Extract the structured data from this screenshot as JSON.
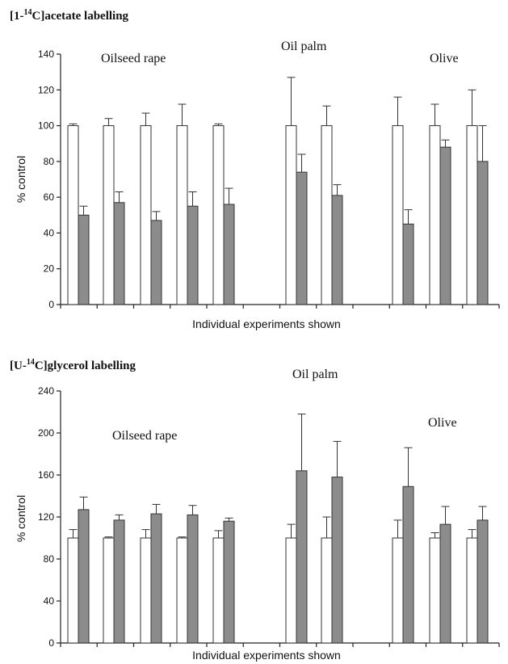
{
  "chart_data": [
    {
      "type": "bar",
      "title_prefix": "[1-",
      "title_sup": "14",
      "title_suffix": "C]acetate labelling",
      "xlabel": "Individual experiments shown",
      "ylabel": "% control",
      "ylim": [
        0,
        140
      ],
      "yticks": [
        0,
        20,
        40,
        60,
        80,
        100,
        120,
        140
      ],
      "groups": [
        "Oilseed rape",
        "Oil palm",
        "Olive"
      ],
      "experiments": [
        {
          "group": "Oilseed rape",
          "control": 100,
          "control_err": 1,
          "treated": 50,
          "treated_err": 5
        },
        {
          "group": "Oilseed rape",
          "control": 100,
          "control_err": 4,
          "treated": 57,
          "treated_err": 6
        },
        {
          "group": "Oilseed rape",
          "control": 100,
          "control_err": 7,
          "treated": 47,
          "treated_err": 5
        },
        {
          "group": "Oilseed rape",
          "control": 100,
          "control_err": 12,
          "treated": 55,
          "treated_err": 8
        },
        {
          "group": "Oilseed rape",
          "control": 100,
          "control_err": 1,
          "treated": 56,
          "treated_err": 9
        },
        {
          "group": "Oil palm",
          "control": 100,
          "control_err": 27,
          "treated": 74,
          "treated_err": 10
        },
        {
          "group": "Oil palm",
          "control": 100,
          "control_err": 11,
          "treated": 61,
          "treated_err": 6
        },
        {
          "group": "Olive",
          "control": 100,
          "control_err": 16,
          "treated": 45,
          "treated_err": 8
        },
        {
          "group": "Olive",
          "control": 100,
          "control_err": 12,
          "treated": 88,
          "treated_err": 4
        },
        {
          "group": "Olive",
          "control": 100,
          "control_err": 20,
          "treated": 80,
          "treated_err": 20
        }
      ]
    },
    {
      "type": "bar",
      "title_prefix": "[U-",
      "title_sup": "14",
      "title_suffix": "C]glycerol labelling",
      "xlabel": "Individual experiments shown",
      "ylabel": "% control",
      "ylim": [
        0,
        240
      ],
      "yticks": [
        0,
        40,
        80,
        120,
        160,
        200,
        240
      ],
      "groups": [
        "Oilseed rape",
        "Oil palm",
        "Olive"
      ],
      "experiments": [
        {
          "group": "Oilseed rape",
          "control": 100,
          "control_err": 8,
          "treated": 127,
          "treated_err": 12
        },
        {
          "group": "Oilseed rape",
          "control": 100,
          "control_err": 1,
          "treated": 117,
          "treated_err": 5
        },
        {
          "group": "Oilseed rape",
          "control": 100,
          "control_err": 8,
          "treated": 123,
          "treated_err": 9
        },
        {
          "group": "Oilseed rape",
          "control": 100,
          "control_err": 1,
          "treated": 122,
          "treated_err": 9
        },
        {
          "group": "Oilseed rape",
          "control": 100,
          "control_err": 7,
          "treated": 116,
          "treated_err": 3
        },
        {
          "group": "Oil palm",
          "control": 100,
          "control_err": 13,
          "treated": 164,
          "treated_err": 54
        },
        {
          "group": "Oil palm",
          "control": 100,
          "control_err": 20,
          "treated": 158,
          "treated_err": 34
        },
        {
          "group": "Olive",
          "control": 100,
          "control_err": 17,
          "treated": 149,
          "treated_err": 37
        },
        {
          "group": "Olive",
          "control": 100,
          "control_err": 5,
          "treated": 113,
          "treated_err": 17
        },
        {
          "group": "Olive",
          "control": 100,
          "control_err": 8,
          "treated": 117,
          "treated_err": 13
        }
      ]
    }
  ]
}
